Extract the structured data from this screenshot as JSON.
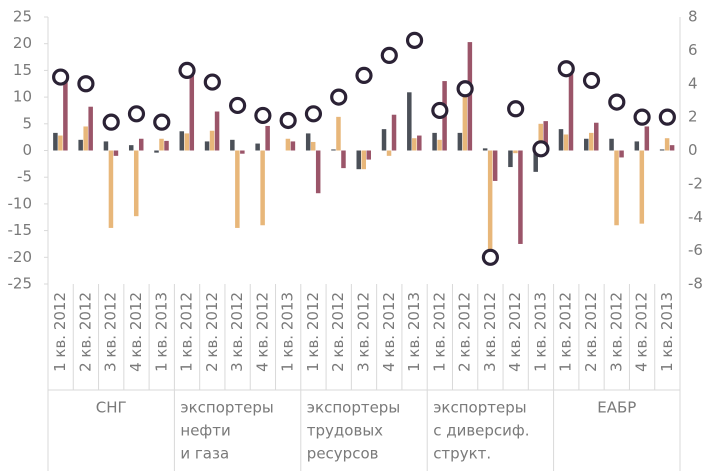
{
  "chart_data": {
    "type": "bar",
    "groups": [
      {
        "label": [
          "СНГ"
        ]
      },
      {
        "label": [
          "экспортеры",
          "нефти",
          "и газа"
        ]
      },
      {
        "label": [
          "экспортеры",
          "трудовых",
          "ресурсов"
        ]
      },
      {
        "label": [
          "экспортеры",
          "с диверсиф.",
          "структ."
        ]
      },
      {
        "label": [
          "ЕАБР"
        ]
      }
    ],
    "categories": [
      "1 кв. 2012",
      "2 кв. 2012",
      "3 кв. 2012",
      "4 кв. 2012",
      "1 кв. 2013",
      "1 кв. 2012",
      "2 кв. 2012",
      "3 кв. 2012",
      "4 кв. 2012",
      "1 кв. 2013",
      "1 кв. 2012",
      "2 кв. 2012",
      "3 кв. 2012",
      "4 кв. 2012",
      "1 кв. 2013",
      "1 кв. 2012",
      "2 кв. 2012",
      "3 кв. 2012",
      "4 кв. 2012",
      "1 кв. 2013",
      "1 кв. 2012",
      "2 кв. 2012",
      "3 кв. 2012",
      "4 кв. 2012",
      "1 кв. 2013"
    ],
    "series": [
      {
        "color": "#4b5058",
        "values": [
          3.3,
          2,
          1.7,
          1,
          -0.4,
          3.6,
          1.7,
          2,
          1.3,
          0,
          3.2,
          0.2,
          -3.5,
          4,
          10.9,
          3.3,
          3.3,
          0.4,
          -3.1,
          -4,
          4,
          2.2,
          2.2,
          1.7,
          0.2
        ]
      },
      {
        "color": "#e8b77a",
        "values": [
          2.8,
          4.5,
          -14.5,
          -12.3,
          2.2,
          3.2,
          3.7,
          -14.5,
          -14,
          2.2,
          1.6,
          6.3,
          -3.5,
          -1,
          2.3,
          2,
          11.5,
          -20,
          -0.5,
          5,
          3,
          3.3,
          -14,
          -13.7,
          2.3
        ]
      },
      {
        "color": "#9b5569",
        "values": [
          14.5,
          8.2,
          -1,
          2.2,
          1.8,
          15,
          7.3,
          -0.6,
          4.6,
          1.7,
          -8,
          -3.3,
          -1.7,
          6.7,
          2.8,
          13,
          20.3,
          -5.7,
          -17.5,
          5.5,
          14.3,
          5.2,
          -1.3,
          4.5,
          1
        ]
      },
      {
        "type": "marker",
        "axis": "y2",
        "color": "#2b2235",
        "values": [
          4.4,
          4,
          1.7,
          2.2,
          1.7,
          4.8,
          4.1,
          2.7,
          2.1,
          1.8,
          2.2,
          3.2,
          4.5,
          5.7,
          6.6,
          2.4,
          3.7,
          -6.4,
          2.5,
          0.1,
          4.9,
          4.2,
          2.9,
          2,
          2
        ]
      }
    ],
    "ylim": [
      -25,
      25
    ],
    "yticks": [
      -25,
      -20,
      -15,
      -10,
      -5,
      0,
      5,
      10,
      15,
      20,
      25
    ],
    "y2lim": [
      -8,
      8
    ],
    "y2ticks": [
      -8,
      -6,
      -4,
      -2,
      0,
      2,
      4,
      6,
      8
    ]
  }
}
